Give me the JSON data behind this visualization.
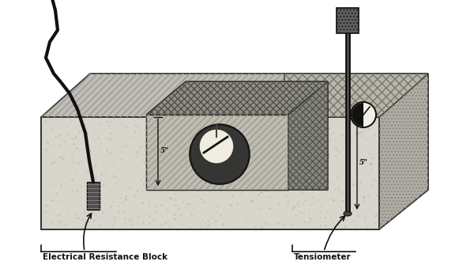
{
  "bg_color": "#ffffff",
  "label1": "Electrical Resistance Block",
  "label2": "Tensiometer",
  "depth_label1": "5\"",
  "depth_label2": "5\"",
  "fig_width": 6.0,
  "fig_height": 3.4,
  "dpi": 100
}
